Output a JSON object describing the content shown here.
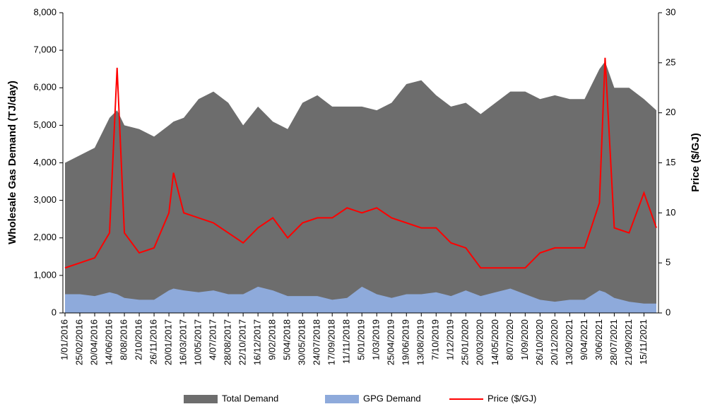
{
  "chart_data": {
    "type": "area-line",
    "y_label": "Wholesale Gas Demand (TJ/day)",
    "y2_label": "Price ($/GJ)",
    "x": [
      "1/01/2016",
      "25/02/2016",
      "20/04/2016",
      "14/06/2016",
      "12/07/2016",
      "8/08/2016",
      "2/10/2016",
      "26/11/2016",
      "20/01/2017",
      "6/02/2017",
      "16/03/2017",
      "10/05/2017",
      "4/07/2017",
      "28/08/2017",
      "22/10/2017",
      "16/12/2017",
      "9/02/2018",
      "5/04/2018",
      "30/05/2018",
      "24/07/2018",
      "17/09/2018",
      "11/11/2018",
      "5/01/2019",
      "1/03/2019",
      "25/04/2019",
      "19/06/2019",
      "13/08/2019",
      "7/10/2019",
      "1/12/2019",
      "25/01/2020",
      "20/03/2020",
      "14/05/2020",
      "8/07/2020",
      "1/09/2020",
      "26/10/2020",
      "20/12/2020",
      "13/02/2021",
      "9/04/2021",
      "3/06/2021",
      "24/06/2021",
      "28/07/2021",
      "21/09/2021",
      "15/11/2021",
      "31/12/2021"
    ],
    "xlim": [
      "1/01/2016",
      "31/12/2021"
    ],
    "xticks": [
      "1/01/2016",
      "25/02/2016",
      "20/04/2016",
      "14/06/2016",
      "8/08/2016",
      "2/10/2016",
      "26/11/2016",
      "20/01/2017",
      "16/03/2017",
      "10/05/2017",
      "4/07/2017",
      "28/08/2017",
      "22/10/2017",
      "16/12/2017",
      "9/02/2018",
      "5/04/2018",
      "30/05/2018",
      "24/07/2018",
      "17/09/2018",
      "11/11/2018",
      "5/01/2019",
      "1/03/2019",
      "25/04/2019",
      "19/06/2019",
      "13/08/2019",
      "7/10/2019",
      "1/12/2019",
      "25/01/2020",
      "20/03/2020",
      "14/05/2020",
      "8/07/2020",
      "1/09/2020",
      "26/10/2020",
      "20/12/2020",
      "13/02/2021",
      "9/04/2021",
      "3/06/2021",
      "28/07/2021",
      "21/09/2021",
      "15/11/2021"
    ],
    "ylim": [
      0,
      8000
    ],
    "yticks": [
      0,
      {
        "value": 1000,
        "label": "1,000"
      },
      {
        "value": 2000,
        "label": "2,000"
      },
      {
        "value": 3000,
        "label": "3,000"
      },
      {
        "value": 4000,
        "label": "4,000"
      },
      {
        "value": 5000,
        "label": "5,000"
      },
      {
        "value": 6000,
        "label": "6,000"
      },
      {
        "value": 7000,
        "label": "7,000"
      },
      {
        "value": 8000,
        "label": "8,000"
      }
    ],
    "y2lim": [
      0,
      30
    ],
    "y2ticks": [
      0,
      5,
      10,
      15,
      20,
      25,
      30
    ],
    "grid": false,
    "legend": "bottom",
    "series": [
      {
        "name": "Total Demand",
        "color": "#6d6d6d",
        "kind": "area",
        "values": [
          4000,
          4200,
          4400,
          5200,
          5400,
          5000,
          4900,
          4700,
          5000,
          5100,
          5200,
          5700,
          5900,
          5600,
          5000,
          5500,
          5100,
          4900,
          5600,
          5800,
          5500,
          5500,
          5500,
          5400,
          5600,
          6100,
          6200,
          5800,
          5500,
          5600,
          5300,
          5600,
          5900,
          5900,
          5700,
          5800,
          5700,
          5700,
          6500,
          6700,
          6000,
          6000,
          5700,
          5400
        ]
      },
      {
        "name": "GPG Demand",
        "color": "#8eaadb",
        "kind": "area",
        "values": [
          500,
          500,
          450,
          550,
          500,
          400,
          350,
          350,
          600,
          650,
          600,
          550,
          600,
          500,
          500,
          700,
          600,
          450,
          450,
          450,
          350,
          400,
          700,
          500,
          400,
          500,
          500,
          550,
          450,
          600,
          450,
          550,
          650,
          500,
          350,
          300,
          350,
          350,
          600,
          550,
          400,
          300,
          250,
          250
        ]
      },
      {
        "name": "Price ($/GJ)",
        "color": "#ff0000",
        "kind": "line",
        "axis": "y2",
        "values": [
          4.5,
          5,
          5.5,
          8,
          24.5,
          8,
          6,
          6.5,
          10,
          14,
          10,
          9.5,
          9,
          8,
          7,
          8.5,
          9.5,
          7.5,
          9,
          9.5,
          9.5,
          10.5,
          10,
          10.5,
          9.5,
          9,
          8.5,
          8.5,
          7,
          6.5,
          4.5,
          4.5,
          4.5,
          4.5,
          6,
          6.5,
          6.5,
          6.5,
          11,
          25.5,
          8.5,
          8,
          12,
          8.5
        ]
      }
    ]
  }
}
